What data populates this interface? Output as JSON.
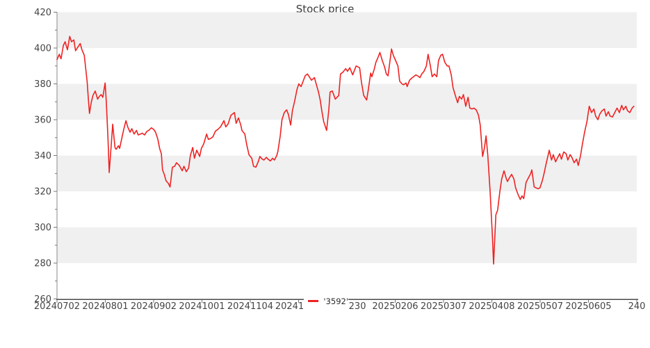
{
  "title": "Stock price",
  "legend": {
    "label": "'3592'"
  },
  "colors": {
    "line": "#ee2222",
    "band": "#f0f0f0",
    "spine_bottom": "#4a4a4a",
    "spine_left": "#8a8a8a",
    "tick": "#777777",
    "tick_label": "#444444"
  },
  "chart_data": {
    "type": "line",
    "title": "Stock price",
    "xlabel": "",
    "ylabel": "",
    "ylim": [
      260,
      420
    ],
    "y_ticks": [
      420,
      400,
      380,
      360,
      340,
      320,
      300,
      280,
      260
    ],
    "y_minor_ticks": [
      410,
      390,
      370,
      350,
      330,
      310,
      290,
      270
    ],
    "bands": [
      [
        400,
        420
      ],
      [
        360,
        380
      ],
      [
        320,
        340
      ],
      [
        280,
        300
      ]
    ],
    "grid": "alternating horizontal bands",
    "legend_position": "bottom-center",
    "x_tick_labels": [
      "20240702",
      "20240801",
      "20240902",
      "20241001",
      "20241104",
      "20241",
      ".230",
      "20250206",
      "20250307",
      "20250408",
      "20250507",
      "20250605",
      "240"
    ],
    "x_tick_label_dx": [
      0,
      0,
      0,
      0,
      0,
      -13,
      13,
      0,
      0,
      0,
      0,
      0,
      0
    ],
    "series": [
      {
        "name": "'3592'",
        "color": "#ee2222",
        "points": [
          [
            0.0,
            393.5
          ],
          [
            0.004,
            396.5
          ],
          [
            0.007,
            394
          ],
          [
            0.011,
            401.5
          ],
          [
            0.014,
            403.5
          ],
          [
            0.018,
            399
          ],
          [
            0.022,
            406.5
          ],
          [
            0.025,
            403.5
          ],
          [
            0.029,
            404.5
          ],
          [
            0.032,
            398.5
          ],
          [
            0.036,
            400.5
          ],
          [
            0.04,
            402.5
          ],
          [
            0.043,
            399
          ],
          [
            0.047,
            396
          ],
          [
            0.049,
            390
          ],
          [
            0.052,
            381
          ],
          [
            0.054,
            372
          ],
          [
            0.056,
            363.5
          ],
          [
            0.059,
            369.5
          ],
          [
            0.062,
            373.5
          ],
          [
            0.066,
            376
          ],
          [
            0.07,
            371.5
          ],
          [
            0.073,
            373
          ],
          [
            0.076,
            374
          ],
          [
            0.079,
            372.5
          ],
          [
            0.083,
            380.5
          ],
          [
            0.085,
            370
          ],
          [
            0.088,
            349
          ],
          [
            0.09,
            330.5
          ],
          [
            0.094,
            348
          ],
          [
            0.096,
            357.5
          ],
          [
            0.1,
            344.5
          ],
          [
            0.102,
            343.5
          ],
          [
            0.106,
            345.5
          ],
          [
            0.108,
            344
          ],
          [
            0.112,
            350
          ],
          [
            0.115,
            354.5
          ],
          [
            0.119,
            359.5
          ],
          [
            0.122,
            356
          ],
          [
            0.126,
            353
          ],
          [
            0.129,
            355
          ],
          [
            0.133,
            352
          ],
          [
            0.137,
            354
          ],
          [
            0.14,
            351.5
          ],
          [
            0.144,
            352
          ],
          [
            0.147,
            352.5
          ],
          [
            0.151,
            351.5
          ],
          [
            0.155,
            353.5
          ],
          [
            0.158,
            354
          ],
          [
            0.163,
            355.5
          ],
          [
            0.167,
            354.5
          ],
          [
            0.17,
            353
          ],
          [
            0.174,
            349
          ],
          [
            0.177,
            344
          ],
          [
            0.18,
            341
          ],
          [
            0.182,
            332
          ],
          [
            0.185,
            329.5
          ],
          [
            0.188,
            326
          ],
          [
            0.192,
            324.5
          ],
          [
            0.195,
            322.5
          ],
          [
            0.199,
            333.5
          ],
          [
            0.203,
            334
          ],
          [
            0.206,
            336
          ],
          [
            0.211,
            334.5
          ],
          [
            0.216,
            331.5
          ],
          [
            0.219,
            334
          ],
          [
            0.223,
            331
          ],
          [
            0.227,
            333
          ],
          [
            0.23,
            340
          ],
          [
            0.234,
            344.5
          ],
          [
            0.237,
            338.5
          ],
          [
            0.241,
            343
          ],
          [
            0.246,
            339.5
          ],
          [
            0.249,
            344
          ],
          [
            0.253,
            346.5
          ],
          [
            0.258,
            352
          ],
          [
            0.261,
            349
          ],
          [
            0.265,
            349.5
          ],
          [
            0.269,
            350.5
          ],
          [
            0.273,
            353.5
          ],
          [
            0.277,
            354.5
          ],
          [
            0.282,
            356
          ],
          [
            0.288,
            359.5
          ],
          [
            0.291,
            356
          ],
          [
            0.295,
            357.5
          ],
          [
            0.3,
            362.5
          ],
          [
            0.306,
            364
          ],
          [
            0.309,
            358
          ],
          [
            0.313,
            361
          ],
          [
            0.317,
            357
          ],
          [
            0.319,
            354
          ],
          [
            0.324,
            352
          ],
          [
            0.327,
            346.5
          ],
          [
            0.331,
            340.5
          ],
          [
            0.336,
            338.5
          ],
          [
            0.339,
            334
          ],
          [
            0.343,
            333.5
          ],
          [
            0.347,
            336.5
          ],
          [
            0.35,
            339.5
          ],
          [
            0.354,
            338
          ],
          [
            0.357,
            337.5
          ],
          [
            0.361,
            339
          ],
          [
            0.364,
            338
          ],
          [
            0.368,
            337
          ],
          [
            0.372,
            338.5
          ],
          [
            0.375,
            337.5
          ],
          [
            0.379,
            340
          ],
          [
            0.381,
            342.5
          ],
          [
            0.385,
            351
          ],
          [
            0.388,
            360
          ],
          [
            0.392,
            364
          ],
          [
            0.396,
            365.5
          ],
          [
            0.399,
            363
          ],
          [
            0.403,
            357
          ],
          [
            0.406,
            365
          ],
          [
            0.41,
            370.5
          ],
          [
            0.414,
            377
          ],
          [
            0.417,
            380
          ],
          [
            0.421,
            378.5
          ],
          [
            0.424,
            381
          ],
          [
            0.428,
            384.5
          ],
          [
            0.432,
            385.5
          ],
          [
            0.435,
            384
          ],
          [
            0.439,
            382
          ],
          [
            0.444,
            383.5
          ],
          [
            0.447,
            380
          ],
          [
            0.451,
            375.5
          ],
          [
            0.454,
            371
          ],
          [
            0.457,
            364.5
          ],
          [
            0.46,
            359
          ],
          [
            0.465,
            354
          ],
          [
            0.469,
            366
          ],
          [
            0.471,
            375.5
          ],
          [
            0.475,
            376
          ],
          [
            0.48,
            371.5
          ],
          [
            0.486,
            373.5
          ],
          [
            0.489,
            385.5
          ],
          [
            0.493,
            386.5
          ],
          [
            0.498,
            388.5
          ],
          [
            0.501,
            387
          ],
          [
            0.505,
            389
          ],
          [
            0.51,
            385
          ],
          [
            0.516,
            390
          ],
          [
            0.522,
            389
          ],
          [
            0.525,
            381
          ],
          [
            0.529,
            373.5
          ],
          [
            0.534,
            371
          ],
          [
            0.537,
            377
          ],
          [
            0.541,
            386
          ],
          [
            0.543,
            384
          ],
          [
            0.547,
            388
          ],
          [
            0.55,
            392
          ],
          [
            0.554,
            395
          ],
          [
            0.557,
            397.5
          ],
          [
            0.561,
            393
          ],
          [
            0.565,
            389.5
          ],
          [
            0.568,
            385.5
          ],
          [
            0.571,
            384.5
          ],
          [
            0.574,
            392
          ],
          [
            0.577,
            399.5
          ],
          [
            0.58,
            396
          ],
          [
            0.584,
            393
          ],
          [
            0.588,
            390
          ],
          [
            0.591,
            381.5
          ],
          [
            0.595,
            380
          ],
          [
            0.598,
            379.5
          ],
          [
            0.602,
            380.5
          ],
          [
            0.604,
            378.5
          ],
          [
            0.608,
            382
          ],
          [
            0.611,
            383
          ],
          [
            0.615,
            384
          ],
          [
            0.619,
            385
          ],
          [
            0.622,
            384.5
          ],
          [
            0.626,
            383.5
          ],
          [
            0.629,
            385.5
          ],
          [
            0.633,
            387
          ],
          [
            0.637,
            390
          ],
          [
            0.64,
            396.5
          ],
          [
            0.644,
            390
          ],
          [
            0.647,
            384
          ],
          [
            0.651,
            385.5
          ],
          [
            0.655,
            384
          ],
          [
            0.658,
            393
          ],
          [
            0.662,
            396
          ],
          [
            0.665,
            396.5
          ],
          [
            0.669,
            392
          ],
          [
            0.673,
            390
          ],
          [
            0.676,
            390
          ],
          [
            0.68,
            385
          ],
          [
            0.683,
            378
          ],
          [
            0.687,
            373.5
          ],
          [
            0.691,
            369.5
          ],
          [
            0.694,
            373
          ],
          [
            0.698,
            371.5
          ],
          [
            0.701,
            374
          ],
          [
            0.705,
            367.5
          ],
          [
            0.709,
            372.5
          ],
          [
            0.712,
            366.5
          ],
          [
            0.716,
            366
          ],
          [
            0.719,
            366.5
          ],
          [
            0.723,
            365.5
          ],
          [
            0.727,
            362.5
          ],
          [
            0.73,
            357
          ],
          [
            0.734,
            339.5
          ],
          [
            0.737,
            344
          ],
          [
            0.74,
            351
          ],
          [
            0.743,
            340
          ],
          [
            0.747,
            320
          ],
          [
            0.751,
            295
          ],
          [
            0.753,
            279.5
          ],
          [
            0.757,
            307
          ],
          [
            0.76,
            309.5
          ],
          [
            0.764,
            320.5
          ],
          [
            0.767,
            327
          ],
          [
            0.771,
            331.5
          ],
          [
            0.775,
            327
          ],
          [
            0.777,
            325.5
          ],
          [
            0.781,
            328
          ],
          [
            0.784,
            329.5
          ],
          [
            0.788,
            327
          ],
          [
            0.791,
            322
          ],
          [
            0.795,
            318.5
          ],
          [
            0.799,
            315.5
          ],
          [
            0.802,
            317.5
          ],
          [
            0.805,
            316
          ],
          [
            0.809,
            325
          ],
          [
            0.813,
            327.5
          ],
          [
            0.817,
            330
          ],
          [
            0.819,
            332
          ],
          [
            0.823,
            322.5
          ],
          [
            0.826,
            322
          ],
          [
            0.83,
            321.5
          ],
          [
            0.833,
            322
          ],
          [
            0.837,
            326
          ],
          [
            0.84,
            330
          ],
          [
            0.844,
            336
          ],
          [
            0.849,
            343
          ],
          [
            0.853,
            337.5
          ],
          [
            0.856,
            340.5
          ],
          [
            0.86,
            336.5
          ],
          [
            0.863,
            338.5
          ],
          [
            0.867,
            341
          ],
          [
            0.87,
            338
          ],
          [
            0.874,
            342
          ],
          [
            0.878,
            341
          ],
          [
            0.881,
            337.5
          ],
          [
            0.885,
            340.5
          ],
          [
            0.888,
            339
          ],
          [
            0.892,
            336
          ],
          [
            0.896,
            338
          ],
          [
            0.899,
            334.5
          ],
          [
            0.903,
            340
          ],
          [
            0.906,
            346
          ],
          [
            0.91,
            353
          ],
          [
            0.914,
            359
          ],
          [
            0.918,
            367.5
          ],
          [
            0.922,
            364
          ],
          [
            0.926,
            366
          ],
          [
            0.929,
            362
          ],
          [
            0.933,
            360
          ],
          [
            0.936,
            363
          ],
          [
            0.94,
            365
          ],
          [
            0.944,
            366
          ],
          [
            0.947,
            362
          ],
          [
            0.951,
            364.5
          ],
          [
            0.954,
            362
          ],
          [
            0.958,
            361.5
          ],
          [
            0.962,
            364
          ],
          [
            0.966,
            366.5
          ],
          [
            0.97,
            364
          ],
          [
            0.974,
            368
          ],
          [
            0.977,
            365.5
          ],
          [
            0.981,
            367.5
          ],
          [
            0.984,
            365
          ],
          [
            0.988,
            364
          ],
          [
            0.992,
            366.5
          ],
          [
            0.995,
            367.5
          ]
        ]
      }
    ]
  }
}
